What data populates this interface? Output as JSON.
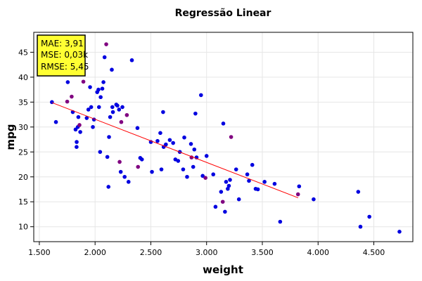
{
  "chart_data": {
    "type": "scatter",
    "title": "Regressão Linear",
    "xlabel": "weight",
    "ylabel": "mpg",
    "xlim": [
      1450,
      4850
    ],
    "ylim": [
      7,
      49
    ],
    "xticks": [
      1500,
      2000,
      2500,
      3000,
      3500,
      4000,
      4500
    ],
    "xtick_labels": [
      "1.500",
      "2.000",
      "2.500",
      "3.000",
      "3.500",
      "4.000",
      "4.500"
    ],
    "yticks": [
      10,
      15,
      20,
      25,
      30,
      35,
      40,
      45
    ],
    "ytick_labels": [
      "10",
      "15",
      "20",
      "25",
      "30",
      "35",
      "40",
      "45"
    ],
    "grid": true,
    "metrics": [
      "MAE: 3,91",
      "MSE: 0,03k",
      "RMSE: 5,45"
    ],
    "colors": {
      "train": "#0000e0",
      "test": "#800080",
      "regression": "#ff0000",
      "metrics_box": "#ffff33"
    },
    "regression_line": {
      "x": [
        1613,
        3821
      ],
      "y": [
        34.9,
        15.8
      ]
    },
    "series": [
      {
        "points": [
          [
            1613,
            35.0
          ],
          [
            1649,
            31.0
          ],
          [
            1755,
            39.0
          ],
          [
            1800,
            33.0
          ],
          [
            1825,
            29.5
          ],
          [
            1834,
            26.0
          ],
          [
            1835,
            27.0
          ],
          [
            1845,
            30.0
          ],
          [
            1850,
            32.0
          ],
          [
            1867,
            29.0
          ],
          [
            1925,
            31.8
          ],
          [
            1940,
            33.5
          ],
          [
            1955,
            38.0
          ],
          [
            1965,
            34.0
          ],
          [
            1980,
            30.0
          ],
          [
            1990,
            31.5
          ],
          [
            2019,
            37.0
          ],
          [
            2030,
            37.5
          ],
          [
            2035,
            34.0
          ],
          [
            2045,
            25.0
          ],
          [
            2050,
            36.0
          ],
          [
            2065,
            37.7
          ],
          [
            2075,
            39.0
          ],
          [
            2085,
            44.0
          ],
          [
            2110,
            24.0
          ],
          [
            2120,
            18.0
          ],
          [
            2125,
            28.0
          ],
          [
            2135,
            32.0
          ],
          [
            2150,
            41.5
          ],
          [
            2155,
            34.0
          ],
          [
            2160,
            33.0
          ],
          [
            2190,
            34.5
          ],
          [
            2200,
            34.3
          ],
          [
            2215,
            33.5
          ],
          [
            2230,
            21.0
          ],
          [
            2245,
            34.0
          ],
          [
            2265,
            20.0
          ],
          [
            2300,
            19.0
          ],
          [
            2330,
            43.4
          ],
          [
            2380,
            29.8
          ],
          [
            2405,
            23.8
          ],
          [
            2420,
            23.5
          ],
          [
            2500,
            27.0
          ],
          [
            2510,
            21.0
          ],
          [
            2560,
            27.2
          ],
          [
            2585,
            28.8
          ],
          [
            2595,
            21.5
          ],
          [
            2610,
            33.0
          ],
          [
            2615,
            26.0
          ],
          [
            2635,
            26.5
          ],
          [
            2670,
            27.4
          ],
          [
            2700,
            26.8
          ],
          [
            2720,
            23.5
          ],
          [
            2745,
            23.2
          ],
          [
            2760,
            25.0
          ],
          [
            2790,
            21.5
          ],
          [
            2800,
            27.9
          ],
          [
            2825,
            20.0
          ],
          [
            2860,
            26.6
          ],
          [
            2880,
            22.0
          ],
          [
            2890,
            25.5
          ],
          [
            2900,
            32.7
          ],
          [
            2910,
            23.9
          ],
          [
            2950,
            36.4
          ],
          [
            2965,
            20.2
          ],
          [
            3000,
            24.2
          ],
          [
            3060,
            20.5
          ],
          [
            3080,
            14.0
          ],
          [
            3130,
            17.0
          ],
          [
            3150,
            30.7
          ],
          [
            3165,
            13.0
          ],
          [
            3175,
            19.0
          ],
          [
            3190,
            17.6
          ],
          [
            3200,
            18.2
          ],
          [
            3210,
            19.4
          ],
          [
            3265,
            21.5
          ],
          [
            3290,
            15.5
          ],
          [
            3365,
            20.5
          ],
          [
            3380,
            19.2
          ],
          [
            3410,
            22.4
          ],
          [
            3440,
            17.6
          ],
          [
            3460,
            17.5
          ],
          [
            3520,
            19.0
          ],
          [
            3610,
            18.6
          ],
          [
            3660,
            11.0
          ],
          [
            3830,
            18.1
          ],
          [
            3960,
            15.5
          ],
          [
            4360,
            17.0
          ],
          [
            4380,
            10.0
          ],
          [
            4460,
            12.0
          ],
          [
            4730,
            9.0
          ]
        ]
      },
      {
        "points": [
          [
            1750,
            35.1
          ],
          [
            1790,
            36.1
          ],
          [
            1860,
            30.4
          ],
          [
            1895,
            39.1
          ],
          [
            2100,
            46.6
          ],
          [
            2220,
            23.0
          ],
          [
            2235,
            31.0
          ],
          [
            2285,
            32.4
          ],
          [
            2385,
            22.0
          ],
          [
            2865,
            23.9
          ],
          [
            2990,
            19.8
          ],
          [
            3145,
            15.0
          ],
          [
            3220,
            28.0
          ],
          [
            3820,
            16.5
          ]
        ]
      }
    ]
  }
}
